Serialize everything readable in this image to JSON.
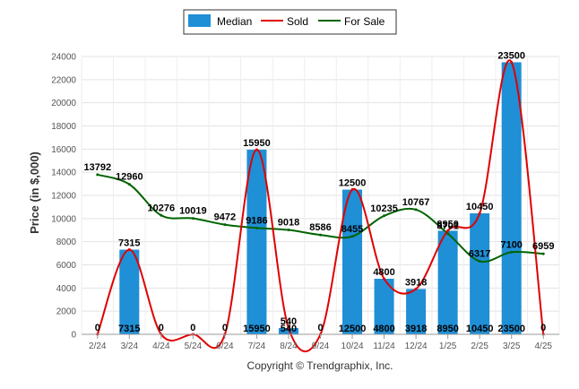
{
  "chart_data": {
    "type": "bar",
    "categories": [
      "2/24",
      "3/24",
      "4/24",
      "5/24",
      "6/24",
      "7/24",
      "8/24",
      "9/24",
      "10/24",
      "11/24",
      "12/24",
      "1/25",
      "2/25",
      "3/25",
      "4/25"
    ],
    "series": [
      {
        "name": "Median",
        "type": "bar",
        "color": "#1f8fd6",
        "values": [
          0,
          7315,
          0,
          0,
          0,
          15950,
          540,
          0,
          12500,
          4800,
          3918,
          8950,
          10450,
          23500,
          0
        ]
      },
      {
        "name": "Sold",
        "type": "line",
        "color": "#e00000",
        "values": [
          0,
          7315,
          0,
          0,
          0,
          15950,
          540,
          0,
          12500,
          4800,
          3918,
          8950,
          10450,
          23500,
          0
        ]
      },
      {
        "name": "For Sale",
        "type": "line",
        "color": "#006400",
        "values": [
          13792,
          12960,
          10276,
          10019,
          9472,
          9186,
          9018,
          8586,
          8455,
          10235,
          10767,
          8701,
          6317,
          7100,
          6959
        ]
      }
    ],
    "ylabel": "Price (in $,000)",
    "ylim": [
      0,
      24000
    ],
    "yticks": [
      0,
      2000,
      4000,
      6000,
      8000,
      10000,
      12000,
      14000,
      16000,
      18000,
      20000,
      22000,
      24000
    ],
    "grid": true,
    "legend_position": "top-center",
    "copyright": "Copyright © Trendgraphix, Inc."
  }
}
